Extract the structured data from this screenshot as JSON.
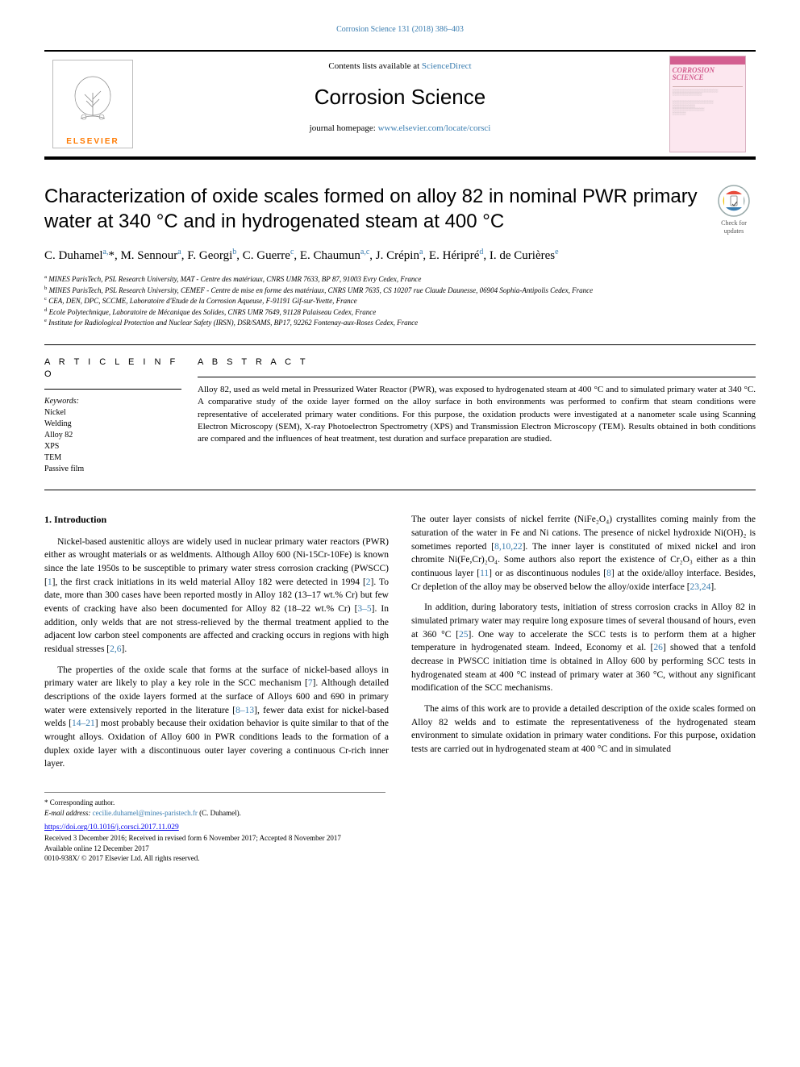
{
  "running_head": "Corrosion Science 131 (2018) 386–403",
  "masthead": {
    "contents_line_prefix": "Contents lists available at ",
    "contents_link": "ScienceDirect",
    "journal_title": "Corrosion Science",
    "homepage_prefix": "journal homepage: ",
    "homepage_link": "www.elsevier.com/locate/corsci",
    "publisher_name": "ELSEVIER",
    "cover_title1": "CORROSION",
    "cover_title2": "SCIENCE"
  },
  "colors": {
    "link": "#3a7db0",
    "elsevier_orange": "#ff7a00",
    "cover_bg": "#fce7ef",
    "cover_accent": "#d35f90"
  },
  "article": {
    "title": "Characterization of oxide scales formed on alloy 82 in nominal PWR primary water at 340 °C and in hydrogenated steam at 400 °C",
    "check_label": "Check for updates"
  },
  "authors_html": "C. Duhamel<sup>a,</sup>*, M. Sennour<sup>a</sup>, F. Georgi<sup>b</sup>, C. Guerre<sup>c</sup>, E. Chaumun<sup>a,c</sup>, J. Crépin<sup>a</sup>, E. Héripré<sup>d</sup>, I. de Curières<sup>e</sup>",
  "affiliations": [
    {
      "sup": "a",
      "text": "MINES ParisTech, PSL Research University, MAT - Centre des matériaux, CNRS UMR 7633, BP 87, 91003 Evry Cedex, France"
    },
    {
      "sup": "b",
      "text": "MINES ParisTech, PSL Research University, CEMEF - Centre de mise en forme des matériaux, CNRS UMR 7635, CS 10207 rue Claude Daunesse, 06904 Sophia-Antipolis Cedex, France"
    },
    {
      "sup": "c",
      "text": "CEA, DEN, DPC, SCCME, Laboratoire d'Etude de la Corrosion Aqueuse, F-91191 Gif-sur-Yvette, France"
    },
    {
      "sup": "d",
      "text": "Ecole Polytechnique, Laboratoire de Mécanique des Solides, CNRS UMR 7649, 91128 Palaiseau Cedex, France"
    },
    {
      "sup": "e",
      "text": "Institute for Radiological Protection and Nuclear Safety (IRSN), DSR/SAMS, BP17, 92262 Fontenay-aux-Roses Cedex, France"
    }
  ],
  "article_info": {
    "heading": "A R T I C L E  I N F O",
    "kw_label": "Keywords:",
    "keywords": [
      "Nickel",
      "Welding",
      "Alloy 82",
      "XPS",
      "TEM",
      "Passive film"
    ]
  },
  "abstract": {
    "heading": "A B S T R A C T",
    "text": "Alloy 82, used as weld metal in Pressurized Water Reactor (PWR), was exposed to hydrogenated steam at 400 °C and to simulated primary water at 340 °C. A comparative study of the oxide layer formed on the alloy surface in both environments was performed to confirm that steam conditions were representative of accelerated primary water conditions. For this purpose, the oxidation products were investigated at a nanometer scale using Scanning Electron Microscopy (SEM), X-ray Photoelectron Spectrometry (XPS) and Transmission Electron Microscopy (TEM). Results obtained in both conditions are compared and the influences of heat treatment, test duration and surface preparation are studied."
  },
  "body": {
    "heading": "1.  Introduction",
    "p1": "Nickel-based austenitic alloys are widely used in nuclear primary water reactors (PWR) either as wrought materials or as weldments. Although Alloy 600 (Ni-15Cr-10Fe) is known since the late 1950s to be susceptible to primary water stress corrosion cracking (PWSCC) [1], the first crack initiations in its weld material Alloy 182 were detected in 1994 [2]. To date, more than 300 cases have been reported mostly in Alloy 182 (13–17 wt.% Cr) but few events of cracking have also been documented for Alloy 82 (18–22 wt.% Cr) [3–5]. In addition, only welds that are not stress-relieved by the thermal treatment applied to the adjacent low carbon steel components are affected and cracking occurs in regions with high residual stresses [2,6].",
    "p2": "The properties of the oxide scale that forms at the surface of nickel-based alloys in primary water are likely to play a key role in the SCC mechanism [7]. Although detailed descriptions of the oxide layers formed at the surface of Alloys 600 and 690 in primary water were extensively reported in the literature [8–13], fewer data exist for nickel-based welds [14–21] most probably because their oxidation behavior is quite similar to that of the wrought alloys. Oxidation of Alloy 600 in PWR conditions leads to the formation of a duplex oxide layer with a discontinuous outer layer covering a continuous Cr-rich inner layer.",
    "p3": "The outer layer consists of nickel ferrite (NiFe₂O₄) crystallites coming mainly from the saturation of the water in Fe and Ni cations. The presence of nickel hydroxide Ni(OH)₂ is sometimes reported [8,10,22]. The inner layer is constituted of mixed nickel and iron chromite Ni(Fe,Cr)₂O₄. Some authors also report the existence of Cr₂O₃ either as a thin continuous layer [11] or as discontinuous nodules [8] at the oxide/alloy interface. Besides, Cr depletion of the alloy may be observed below the alloy/oxide interface [23,24].",
    "p4": "In addition, during laboratory tests, initiation of stress corrosion cracks in Alloy 82 in simulated primary water may require long exposure times of several thousand of hours, even at 360 °C [25]. One way to accelerate the SCC tests is to perform them at a higher temperature in hydrogenated steam. Indeed, Economy et al. [26] showed that a tenfold decrease in PWSCC initiation time is obtained in Alloy 600 by performing SCC tests in hydrogenated steam at 400 °C instead of primary water at 360 °C, without any significant modification of the SCC mechanisms.",
    "p5": "The aims of this work are to provide a detailed description of the oxide scales formed on Alloy 82 welds and to estimate the representativeness of the hydrogenated steam environment to simulate oxidation in primary water conditions. For this purpose, oxidation tests are carried out in hydrogenated steam at 400 °C and in simulated"
  },
  "footer": {
    "corr": "* Corresponding author.",
    "email_label": "E-mail address: ",
    "email": "cecilie.duhamel@mines-paristech.fr",
    "email_suffix": " (C. Duhamel).",
    "doi": "https://doi.org/10.1016/j.corsci.2017.11.029",
    "history": "Received 3 December 2016; Received in revised form 6 November 2017; Accepted 8 November 2017",
    "online": "Available online 12 December 2017",
    "copyright": "0010-938X/ © 2017 Elsevier Ltd. All rights reserved."
  }
}
